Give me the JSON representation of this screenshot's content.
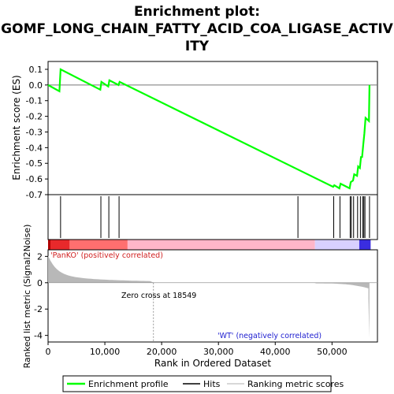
{
  "title_lines": [
    "Enrichment plot:",
    "GOMF_LONG_CHAIN_FATTY_ACID_COA_LIGASE_ACTIV",
    "ITY"
  ],
  "chart_data": {
    "type": "line",
    "es_panel": {
      "ylabel": "Enrichment score (ES)",
      "yticks": [
        0.1,
        0.0,
        -0.1,
        -0.2,
        -0.3,
        -0.4,
        -0.5,
        -0.6,
        -0.7
      ],
      "ytick_labels": [
        "0.1",
        "0.0",
        "-0.1",
        "-0.2",
        "-0.3",
        "-0.4",
        "-0.5",
        "-0.6",
        "-0.7"
      ],
      "ylim": [
        -0.7,
        0.12
      ],
      "series": [
        {
          "name": "Enrichment profile",
          "color": "#00ff00",
          "x": [
            0,
            2000,
            2200,
            9200,
            9400,
            10600,
            10800,
            12400,
            12600,
            50200,
            50400,
            51300,
            51500,
            53100,
            53300,
            53700,
            53900,
            54400,
            54600,
            54900,
            55100,
            55300,
            55500,
            55700,
            55900,
            56500,
            56600
          ],
          "y": [
            0.0,
            -0.04,
            0.1,
            -0.03,
            0.02,
            -0.01,
            0.03,
            0.0,
            0.02,
            -0.65,
            -0.64,
            -0.66,
            -0.63,
            -0.66,
            -0.62,
            -0.61,
            -0.57,
            -0.58,
            -0.52,
            -0.53,
            -0.46,
            -0.46,
            -0.38,
            -0.31,
            -0.21,
            -0.23,
            0.0
          ]
        }
      ]
    },
    "hits": {
      "legend_name": "Hits",
      "x": [
        2200,
        9300,
        10700,
        12500,
        44000,
        50300,
        51400,
        53200,
        53400,
        53800,
        54500,
        55000,
        55400,
        55600,
        55800,
        56600
      ]
    },
    "rank_bar": {
      "colors": [
        "#e8292b",
        "#ff6f6f",
        "#ffb6c9",
        "#d8d0ff",
        "#3a2de0"
      ]
    },
    "metric_panel": {
      "ylabel": "Ranked list metric (Signal2Noise)",
      "yticks": [
        2,
        0,
        -2,
        -4
      ],
      "ytick_labels": [
        "2",
        "0",
        "-2",
        "-4"
      ],
      "ylim": [
        -4.5,
        2.5
      ],
      "legend_name": "Ranking metric scores",
      "positive_label": "'PanKO' (positively correlated)",
      "negative_label": "'WT' (negatively correlated)",
      "zero_cross_label": "Zero cross at 18549",
      "zero_cross": 18549
    },
    "xaxis": {
      "xlabel": "Rank in Ordered Dataset",
      "xticks": [
        0,
        10000,
        20000,
        30000,
        40000,
        50000
      ],
      "xtick_labels": [
        "0",
        "10,000",
        "20,000",
        "30,000",
        "40,000",
        "50,000"
      ],
      "xlim": [
        0,
        58000
      ]
    },
    "legend": [
      "Enrichment profile",
      "Hits",
      "Ranking metric scores"
    ]
  }
}
